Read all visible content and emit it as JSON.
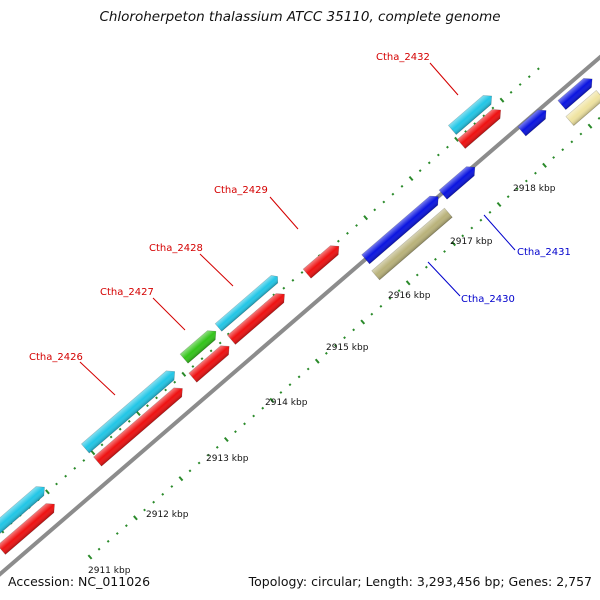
{
  "title": "Chloroherpeton thalassium ATCC 35110, complete genome",
  "footer": {
    "accession": "Accession: NC_011026",
    "summary": "Topology: circular; Length: 3,293,456 bp; Genes: 2,757"
  },
  "colors": {
    "backbone": "#8c8c8c",
    "tick": "#2a8a2a",
    "label_top": "#d40000",
    "label_bottom": "#0000cc",
    "gene_red": "#ee1111",
    "gene_cyan": "#22c6e6",
    "gene_blue": "#0a14e0",
    "gene_green": "#33c41a",
    "gene_olive": "#b9b27a",
    "gene_tan": "#efe3a0"
  },
  "ticks": [
    "2911 kbp",
    "2912 kbp",
    "2913 kbp",
    "2914 kbp",
    "2915 kbp",
    "2916 kbp",
    "2917 kbp",
    "2918 kbp"
  ],
  "gene_labels": {
    "top": [
      "Ctha_2426",
      "Ctha_2427",
      "Ctha_2428",
      "Ctha_2429",
      "Ctha_2432"
    ],
    "bottom": [
      "Ctha_2430",
      "Ctha_2431"
    ]
  },
  "genes": [
    {
      "id": "g1",
      "color": "gene_red"
    },
    {
      "id": "g2",
      "color": "gene_cyan"
    },
    {
      "id": "g3",
      "color": "gene_red"
    },
    {
      "id": "g4",
      "color": "gene_cyan"
    },
    {
      "id": "g5",
      "color": "gene_red"
    },
    {
      "id": "g6",
      "color": "gene_green"
    },
    {
      "id": "g7",
      "color": "gene_red"
    },
    {
      "id": "g8",
      "color": "gene_cyan"
    },
    {
      "id": "g9",
      "color": "gene_red"
    },
    {
      "id": "g10",
      "color": "gene_red"
    },
    {
      "id": "g11",
      "color": "gene_cyan"
    },
    {
      "id": "g12",
      "color": "gene_olive"
    },
    {
      "id": "g13",
      "color": "gene_blue"
    },
    {
      "id": "g14",
      "color": "gene_blue"
    },
    {
      "id": "g15",
      "color": "gene_blue"
    },
    {
      "id": "g16",
      "color": "gene_blue"
    },
    {
      "id": "g17",
      "color": "gene_tan"
    }
  ]
}
